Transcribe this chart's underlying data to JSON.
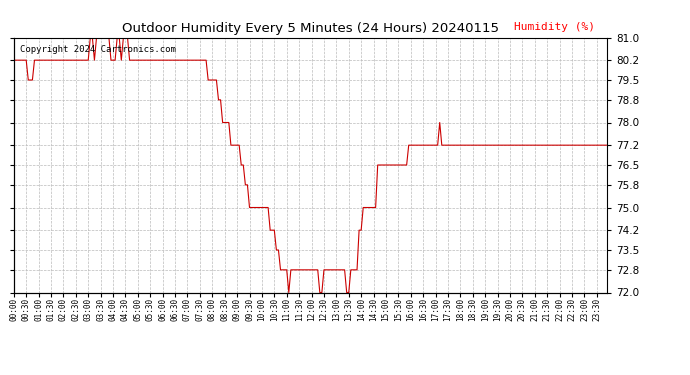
{
  "title": "Outdoor Humidity Every 5 Minutes (24 Hours) 20240115",
  "copyright": "Copyright 2024 Cartronics.com",
  "legend_label": "Humidity (%)",
  "legend_color": "#ff0000",
  "line_color": "#cc0000",
  "bg_color": "#ffffff",
  "grid_color": "#bbbbbb",
  "ylim": [
    72.0,
    81.0
  ],
  "yticks": [
    72.0,
    72.8,
    73.5,
    74.2,
    75.0,
    75.8,
    76.5,
    77.2,
    78.0,
    78.8,
    79.5,
    80.2,
    81.0
  ],
  "humidity_values": [
    80.2,
    80.2,
    80.2,
    80.2,
    80.2,
    80.2,
    80.2,
    79.5,
    79.5,
    79.5,
    80.2,
    80.2,
    80.2,
    80.2,
    80.2,
    80.2,
    80.2,
    80.2,
    80.2,
    80.2,
    80.2,
    80.2,
    80.2,
    80.2,
    80.2,
    80.2,
    80.2,
    80.2,
    80.2,
    80.2,
    80.2,
    80.2,
    80.2,
    80.2,
    80.2,
    80.2,
    80.2,
    81.0,
    81.0,
    80.2,
    81.0,
    81.0,
    81.0,
    81.0,
    81.0,
    81.0,
    81.0,
    80.2,
    80.2,
    80.2,
    81.0,
    81.0,
    80.2,
    81.0,
    81.0,
    81.0,
    80.2,
    80.2,
    80.2,
    80.2,
    80.2,
    80.2,
    80.2,
    80.2,
    80.2,
    80.2,
    80.2,
    80.2,
    80.2,
    80.2,
    80.2,
    80.2,
    80.2,
    80.2,
    80.2,
    80.2,
    80.2,
    80.2,
    80.2,
    80.2,
    80.2,
    80.2,
    80.2,
    80.2,
    80.2,
    80.2,
    80.2,
    80.2,
    80.2,
    80.2,
    80.2,
    80.2,
    80.2,
    80.2,
    79.5,
    79.5,
    79.5,
    79.5,
    79.5,
    78.8,
    78.8,
    78.0,
    78.0,
    78.0,
    78.0,
    77.2,
    77.2,
    77.2,
    77.2,
    77.2,
    76.5,
    76.5,
    75.8,
    75.8,
    75.0,
    75.0,
    75.0,
    75.0,
    75.0,
    75.0,
    75.0,
    75.0,
    75.0,
    75.0,
    74.2,
    74.2,
    74.2,
    73.5,
    73.5,
    72.8,
    72.8,
    72.8,
    72.8,
    72.0,
    72.8,
    72.8,
    72.8,
    72.8,
    72.8,
    72.8,
    72.8,
    72.8,
    72.8,
    72.8,
    72.8,
    72.8,
    72.8,
    72.8,
    72.0,
    72.0,
    72.8,
    72.8,
    72.8,
    72.8,
    72.8,
    72.8,
    72.8,
    72.8,
    72.8,
    72.8,
    72.8,
    72.0,
    72.0,
    72.8,
    72.8,
    72.8,
    72.8,
    74.2,
    74.2,
    75.0,
    75.0,
    75.0,
    75.0,
    75.0,
    75.0,
    75.0,
    76.5,
    76.5,
    76.5,
    76.5,
    76.5,
    76.5,
    76.5,
    76.5,
    76.5,
    76.5,
    76.5,
    76.5,
    76.5,
    76.5,
    76.5,
    77.2,
    77.2,
    77.2,
    77.2,
    77.2,
    77.2,
    77.2,
    77.2,
    77.2,
    77.2,
    77.2,
    77.2,
    77.2,
    77.2,
    77.2,
    78.0,
    77.2,
    77.2,
    77.2,
    77.2,
    77.2,
    77.2,
    77.2,
    77.2,
    77.2,
    77.2,
    77.2,
    77.2,
    77.2,
    77.2,
    77.2,
    77.2,
    77.2,
    77.2,
    77.2,
    77.2,
    77.2,
    77.2,
    77.2,
    77.2,
    77.2,
    77.2,
    77.2,
    77.2,
    77.2,
    77.2,
    77.2,
    77.2,
    77.2,
    77.2,
    77.2,
    77.2,
    77.2,
    77.2,
    77.2,
    77.2,
    77.2,
    77.2,
    77.2,
    77.2,
    77.2,
    77.2,
    77.2,
    77.2,
    77.2,
    77.2,
    77.2,
    77.2,
    77.2,
    77.2,
    77.2,
    77.2,
    77.2,
    77.2,
    77.2,
    77.2,
    77.2,
    77.2,
    77.2,
    77.2,
    77.2,
    77.2,
    77.2,
    77.2,
    77.2,
    77.2,
    77.2,
    77.2,
    77.2,
    77.2,
    77.2,
    77.2,
    77.2,
    77.2,
    77.2,
    77.2,
    77.2
  ],
  "xtick_step": 6,
  "num_xtick_labels": 48
}
